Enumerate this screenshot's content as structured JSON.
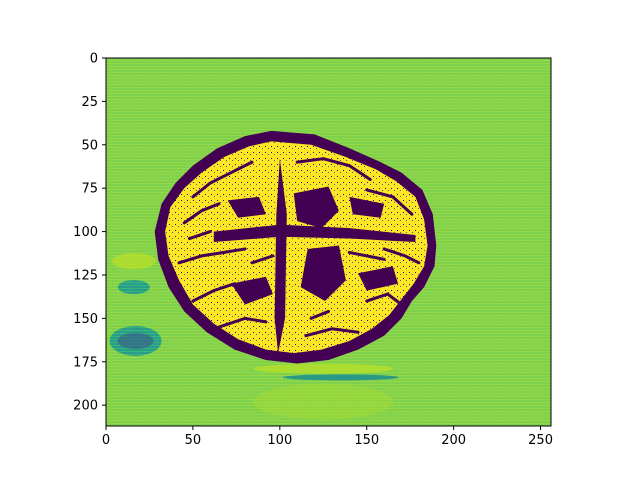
{
  "chart_data": {
    "type": "heatmap",
    "title": "",
    "xlabel": "",
    "ylabel": "",
    "xlim": [
      0,
      256
    ],
    "ylim": [
      212,
      0
    ],
    "x_ticks": [
      0,
      50,
      100,
      150,
      200,
      250
    ],
    "y_ticks": [
      0,
      25,
      50,
      75,
      100,
      125,
      150,
      175,
      200
    ],
    "x_tick_labels": [
      "0",
      "50",
      "100",
      "150",
      "200",
      "250"
    ],
    "y_tick_labels": [
      "0",
      "25",
      "50",
      "75",
      "100",
      "125",
      "150",
      "175",
      "200"
    ],
    "colormap": "viridis",
    "colors": {
      "background": "#7ad151",
      "background_light": "#b5de2b",
      "dark": "#440154",
      "bright": "#fde725",
      "teal": "#21918c",
      "green": "#5ec962"
    },
    "grid": false,
    "content": "grayscale brain MRI axial slice rendered with viridis colormap; bright yellow tissue outlined by dark purple border, textured green background, cyan striped artifacts at left"
  }
}
